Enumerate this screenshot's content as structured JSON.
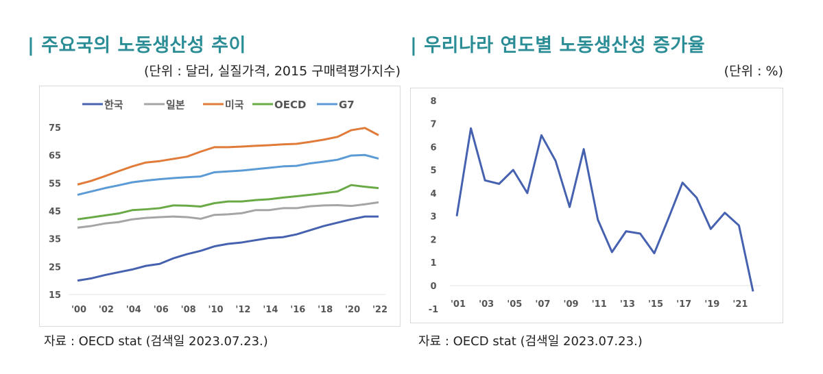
{
  "left": {
    "title": "| 주요국의 노동생산성 추이",
    "unit": "(단위 : 달러, 실질가격, 2015 구매력평가지수)",
    "source": "자료 : OECD stat (검색일 2023.07.23.)"
  },
  "right": {
    "title": "| 우리나라 연도별 노동생산성 증가율",
    "unit": "(단위 : %)",
    "source": "자료 : OECD stat (검색일 2023.07.23.)"
  },
  "chart_data": [
    {
      "type": "line",
      "title": "",
      "xlabel": "",
      "ylabel": "",
      "ylim": [
        15,
        75
      ],
      "yticks": [
        15,
        25,
        35,
        45,
        55,
        65,
        75
      ],
      "x": [
        2000,
        2001,
        2002,
        2003,
        2004,
        2005,
        2006,
        2007,
        2008,
        2009,
        2010,
        2011,
        2012,
        2013,
        2014,
        2015,
        2016,
        2017,
        2018,
        2019,
        2020,
        2021,
        2022
      ],
      "xtick_labels": [
        "'00",
        "'02",
        "'04",
        "'06",
        "'08",
        "'10",
        "'12",
        "'14",
        "'16",
        "'18",
        "'20",
        "'22"
      ],
      "legend_position": "top",
      "grid": false,
      "series": [
        {
          "name": "한국",
          "color": "#4561b0",
          "values": [
            20,
            20.8,
            22,
            23,
            24,
            25.3,
            26,
            28,
            29.5,
            30.7,
            32.3,
            33.2,
            33.7,
            34.5,
            35.3,
            35.6,
            36.6,
            38.1,
            39.6,
            40.8,
            42,
            43,
            43
          ]
        },
        {
          "name": "일본",
          "color": "#a5a5a5",
          "values": [
            39,
            39.6,
            40.5,
            41,
            42,
            42.5,
            42.8,
            43,
            42.8,
            42.2,
            43.6,
            43.8,
            44.2,
            45.3,
            45.3,
            46,
            46,
            46.7,
            47,
            47.1,
            46.8,
            47.4,
            48.1
          ]
        },
        {
          "name": "미국",
          "color": "#e07b39",
          "values": [
            54.5,
            55.8,
            57.5,
            59.3,
            61,
            62.4,
            62.9,
            63.7,
            64.5,
            66.3,
            67.9,
            67.9,
            68.1,
            68.4,
            68.6,
            68.9,
            69.1,
            69.8,
            70.6,
            71.6,
            74,
            74.8,
            72.2
          ]
        },
        {
          "name": "OECD",
          "color": "#6aaa46",
          "values": [
            42,
            42.7,
            43.4,
            44.1,
            45.3,
            45.6,
            46,
            47,
            46.9,
            46.6,
            47.8,
            48.4,
            48.4,
            48.9,
            49.2,
            49.8,
            50.3,
            50.8,
            51.4,
            52,
            54.3,
            53.7,
            53.2
          ]
        },
        {
          "name": "G7",
          "color": "#5b9bd5",
          "values": [
            50.8,
            52,
            53.2,
            54.2,
            55.3,
            55.9,
            56.4,
            56.8,
            57.1,
            57.4,
            58.9,
            59.2,
            59.5,
            60,
            60.5,
            61,
            61.2,
            62.1,
            62.7,
            63.4,
            64.9,
            65.1,
            63.8
          ]
        }
      ]
    },
    {
      "type": "line",
      "title": "",
      "xlabel": "",
      "ylabel": "",
      "ylim": [
        -1,
        8
      ],
      "yticks": [
        -1,
        0,
        1,
        2,
        3,
        4,
        5,
        6,
        7,
        8
      ],
      "x": [
        2001,
        2002,
        2003,
        2004,
        2005,
        2006,
        2007,
        2008,
        2009,
        2010,
        2011,
        2012,
        2013,
        2014,
        2015,
        2016,
        2017,
        2018,
        2019,
        2020,
        2021,
        2022
      ],
      "xtick_labels": [
        "'01",
        "'03",
        "'05",
        "'07",
        "'09",
        "'11",
        "'13",
        "'15",
        "'17",
        "'19",
        "'21"
      ],
      "grid": false,
      "series": [
        {
          "color": "#4561b0",
          "values": [
            3,
            6.8,
            4.55,
            4.4,
            5.0,
            4.0,
            6.5,
            5.4,
            3.4,
            5.9,
            2.85,
            1.45,
            2.35,
            2.25,
            1.4,
            2.9,
            4.45,
            3.8,
            2.45,
            3.15,
            2.6,
            -0.25
          ]
        }
      ]
    }
  ]
}
